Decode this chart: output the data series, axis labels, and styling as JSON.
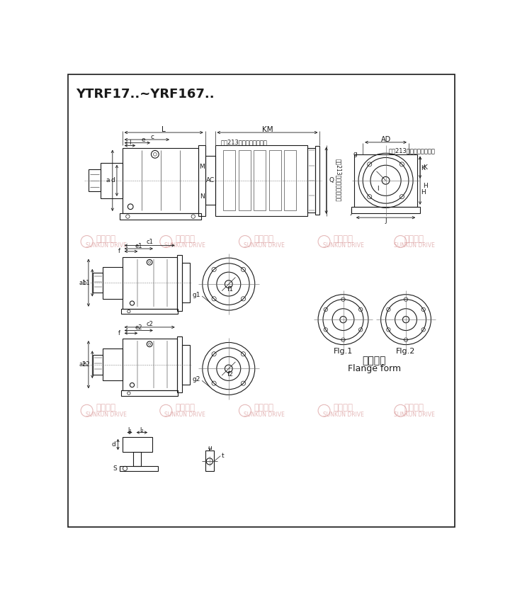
{
  "title": "YTRF17..~YRF167..",
  "bg_color": "#ffffff",
  "line_color": "#1a1a1a",
  "text_note": "见第213页附录电机尺寸表",
  "flange_label1": "Flg.1",
  "flange_label2": "Flg.2",
  "flange_type_cn": "法兰型式",
  "flange_type_en": "Flange form",
  "wm_cn": "上坤传动",
  "wm_en": "SUNKUN DRIVE"
}
